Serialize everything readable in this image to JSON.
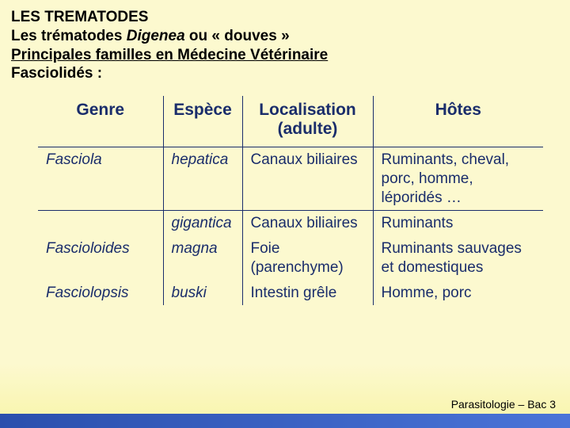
{
  "heading": {
    "line1": "LES TREMATODES",
    "line2_pre": "Les trématodes ",
    "line2_em": "Digenea",
    "line2_post": " ou « douves »",
    "line3": "Principales familles en Médecine Vétérinaire",
    "line4": "Fasciolidés :"
  },
  "table": {
    "headers": {
      "genre": "Genre",
      "espece": "Espèce",
      "localisation": "Localisation (adulte)",
      "hotes": "Hôtes"
    },
    "rows": [
      {
        "genre": "Fasciola",
        "espece": "hepatica",
        "localisation": "Canaux biliaires",
        "hotes": "Ruminants, cheval, porc, homme, léporidés …",
        "hline": true
      },
      {
        "genre": "",
        "espece": "gigantica",
        "localisation": "Canaux biliaires",
        "hotes": "Ruminants",
        "hline": true
      },
      {
        "genre": "Fascioloides",
        "espece": "magna",
        "localisation": "Foie (parenchyme)",
        "hotes": "Ruminants sauvages et domestiques",
        "hline": false
      },
      {
        "genre": "Fasciolopsis",
        "espece": "buski",
        "localisation": "Intestin grêle",
        "hotes": "Homme, porc",
        "hline": false
      }
    ]
  },
  "footer": "Parasitologie – Bac 3",
  "colors": {
    "background_top": "#fcf9cf",
    "background_bottom": "#f8f4a8",
    "table_text": "#1a2d6b",
    "footer_bar_left": "#2a4fad",
    "footer_bar_right": "#4a74d8"
  }
}
